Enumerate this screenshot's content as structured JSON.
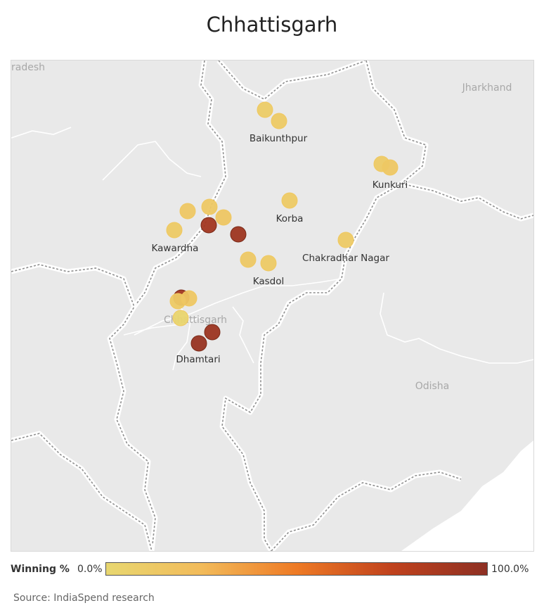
{
  "title": "Chhattisgarh",
  "map": {
    "region_labels": [
      {
        "id": "pradesh",
        "text": "radesh"
      },
      {
        "id": "jharkhand",
        "text": "Jharkhand"
      },
      {
        "id": "chhattisgarh",
        "text": "Chhattisgarh"
      },
      {
        "id": "odisha",
        "text": "Odisha"
      }
    ],
    "place_labels": [
      {
        "id": "baikunthpur",
        "text": "Baikunthpur"
      },
      {
        "id": "kunkuri",
        "text": "Kunkuri"
      },
      {
        "id": "korba",
        "text": "Korba"
      },
      {
        "id": "kawardha",
        "text": "Kawardha"
      },
      {
        "id": "chakradhar-nagar",
        "text": "Chakradhar Nagar"
      },
      {
        "id": "kasdol",
        "text": "Kasdol"
      },
      {
        "id": "dhamtari",
        "text": "Dhamtari"
      }
    ],
    "markers": [
      {
        "winning_pct": 10
      },
      {
        "winning_pct": 12
      },
      {
        "winning_pct": 12
      },
      {
        "winning_pct": 14
      },
      {
        "winning_pct": 12
      },
      {
        "winning_pct": 14
      },
      {
        "winning_pct": 13
      },
      {
        "winning_pct": 15
      },
      {
        "winning_pct": 12
      },
      {
        "winning_pct": 90
      },
      {
        "winning_pct": 92
      },
      {
        "winning_pct": 12
      },
      {
        "winning_pct": 13
      },
      {
        "winning_pct": 12
      },
      {
        "winning_pct": 90
      },
      {
        "winning_pct": 12
      },
      {
        "winning_pct": 14
      },
      {
        "winning_pct": 2
      },
      {
        "winning_pct": 93
      },
      {
        "winning_pct": 95
      }
    ]
  },
  "legend": {
    "label": "Winning %",
    "min_label": "0.0%",
    "max_label": "100.0%",
    "gradient_colors": [
      "#e8d770",
      "#f2bb5a",
      "#ee7a25",
      "#c0421d",
      "#8e3023"
    ]
  },
  "source": "Source: IndiaSpend research"
}
